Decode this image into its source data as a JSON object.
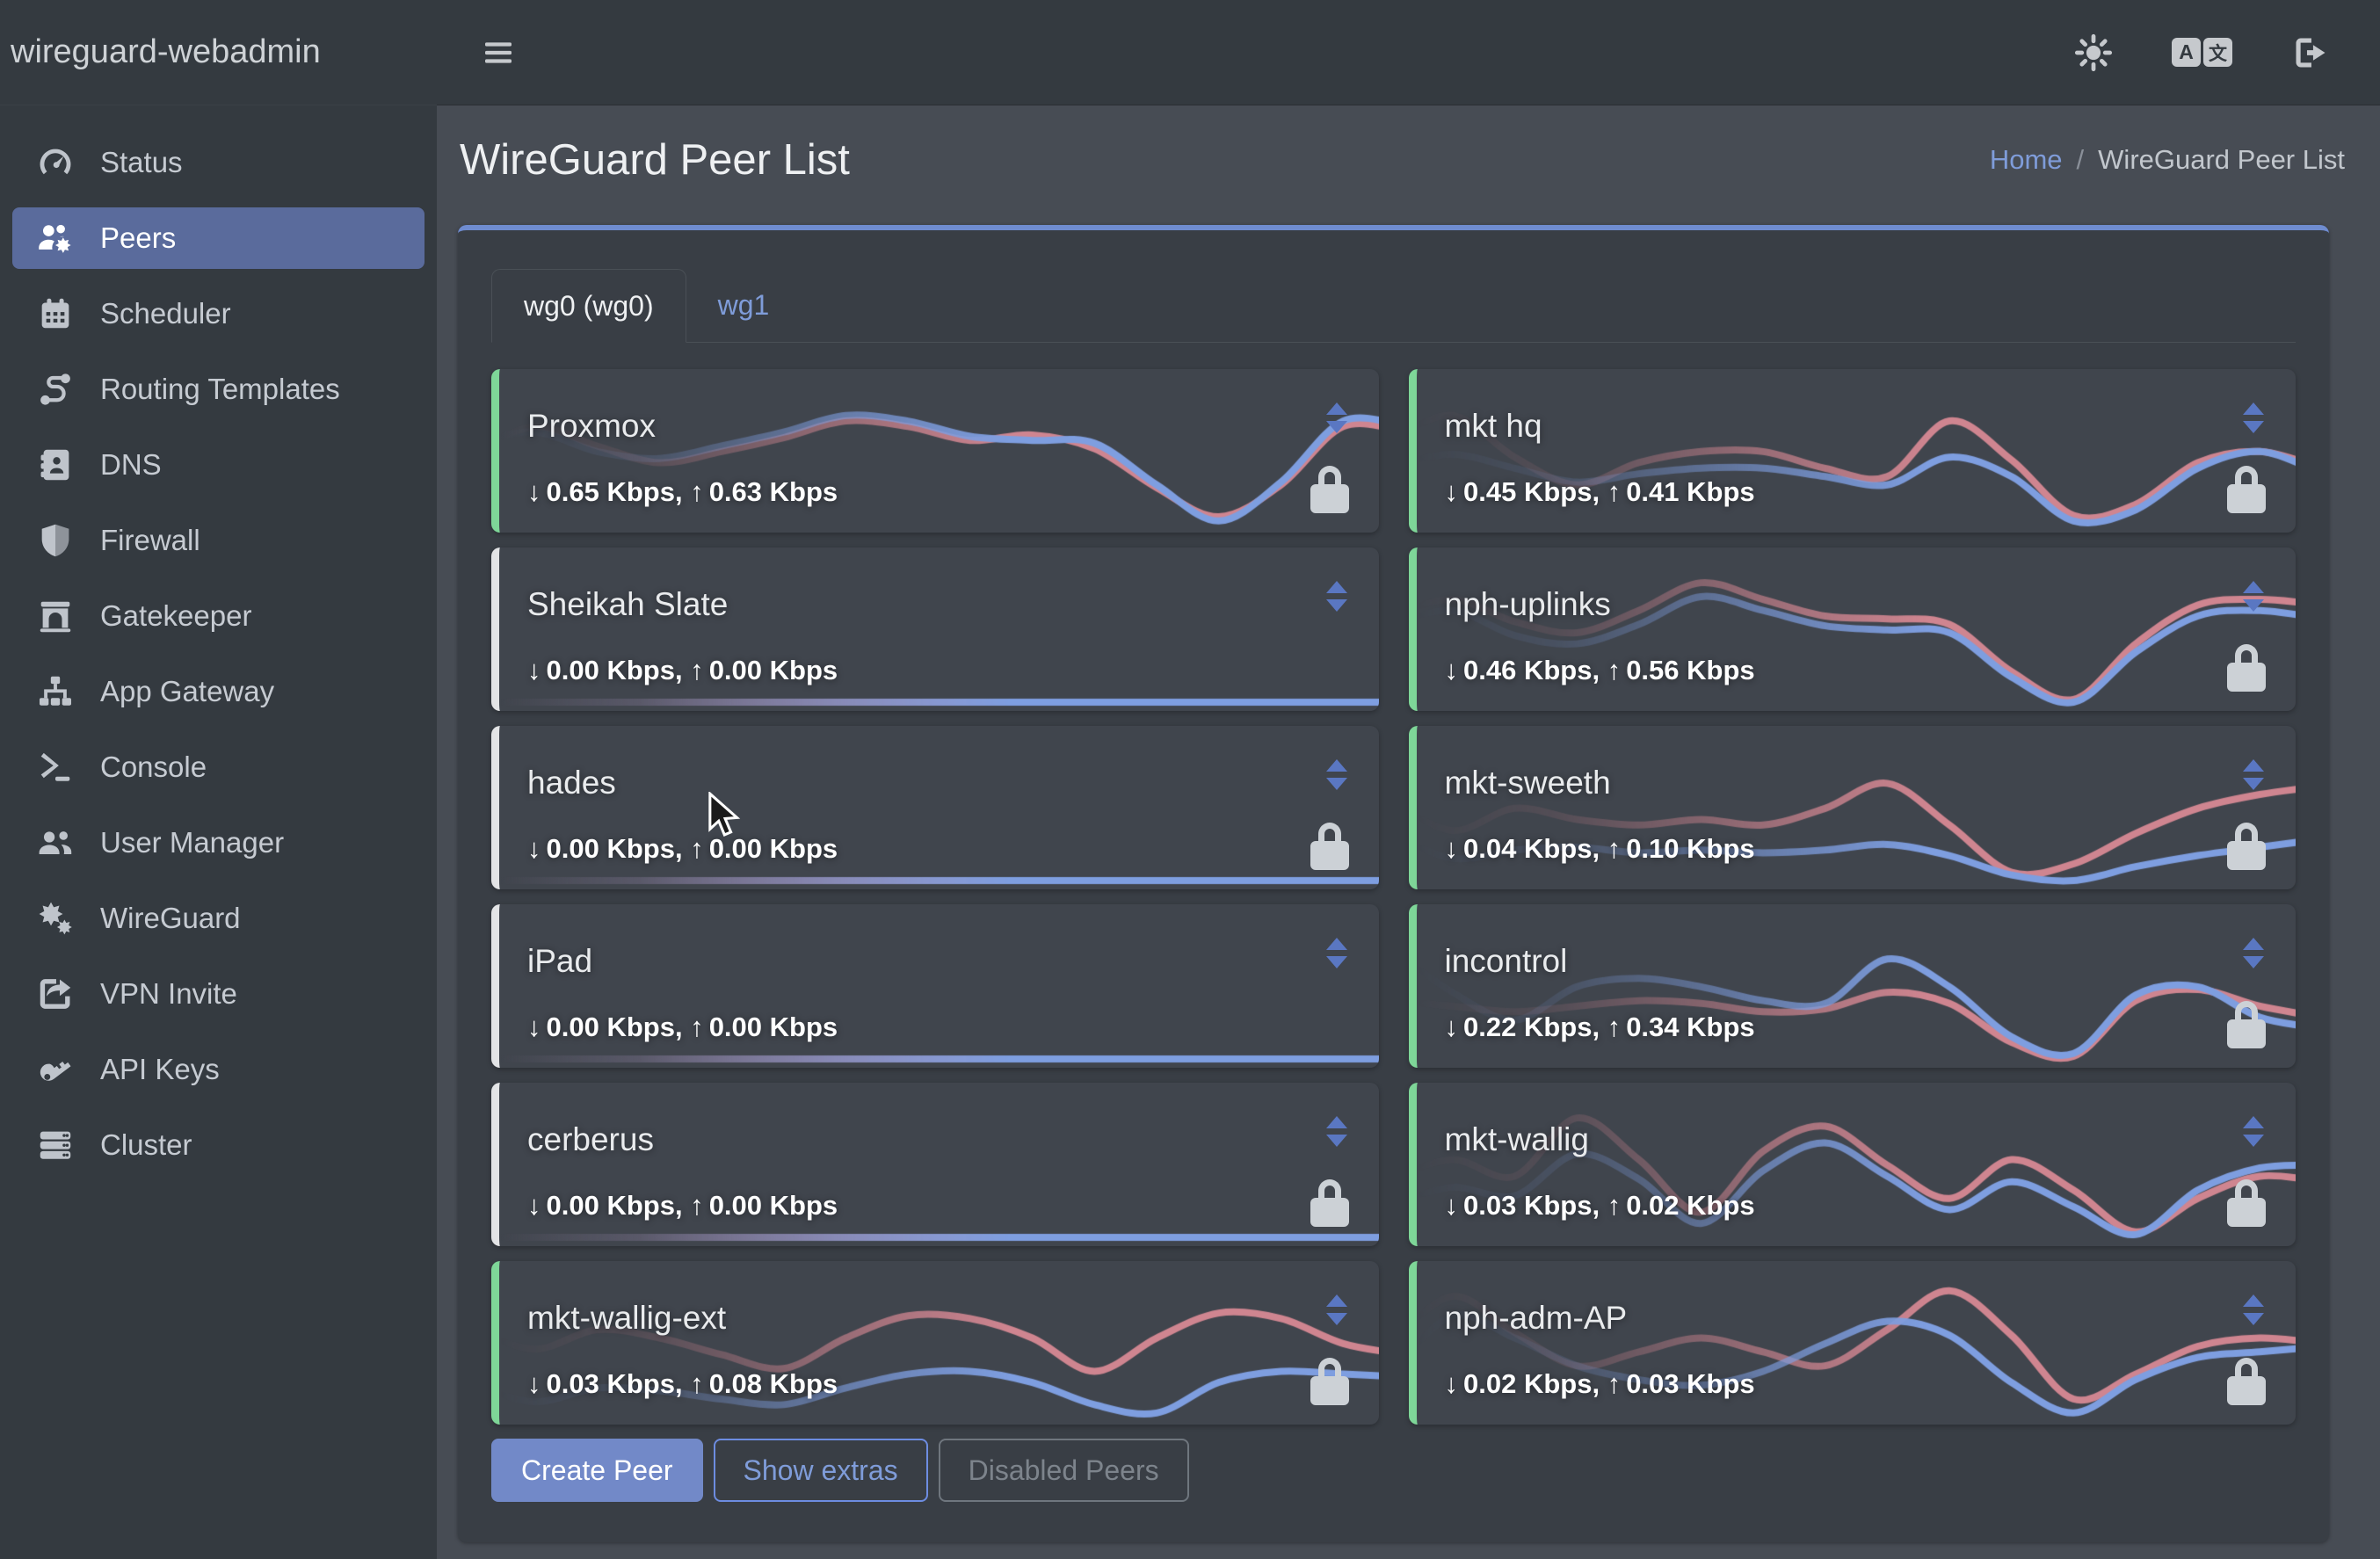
{
  "app": {
    "brand": "wireguard-webadmin"
  },
  "topbar": {
    "icons": [
      {
        "name": "theme-toggle",
        "icon": "sun"
      },
      {
        "name": "language",
        "icon": "translate"
      },
      {
        "name": "logout",
        "icon": "sign-out"
      }
    ]
  },
  "sidebar": {
    "items": [
      {
        "label": "Status",
        "icon": "gauge",
        "active": false
      },
      {
        "label": "Peers",
        "icon": "users-gear",
        "active": true
      },
      {
        "label": "Scheduler",
        "icon": "calendar",
        "active": false
      },
      {
        "label": "Routing Templates",
        "icon": "route",
        "active": false
      },
      {
        "label": "DNS",
        "icon": "address-book",
        "active": false
      },
      {
        "label": "Firewall",
        "icon": "shield",
        "active": false
      },
      {
        "label": "Gatekeeper",
        "icon": "archway",
        "active": false
      },
      {
        "label": "App Gateway",
        "icon": "sitemap",
        "active": false
      },
      {
        "label": "Console",
        "icon": "terminal",
        "active": false
      },
      {
        "label": "User Manager",
        "icon": "users",
        "active": false
      },
      {
        "label": "WireGuard",
        "icon": "gears",
        "active": false
      },
      {
        "label": "VPN Invite",
        "icon": "share-square",
        "active": false
      },
      {
        "label": "API Keys",
        "icon": "key",
        "active": false
      },
      {
        "label": "Cluster",
        "icon": "server",
        "active": false
      }
    ]
  },
  "page": {
    "title": "WireGuard Peer List",
    "breadcrumb": {
      "home": "Home",
      "separator": "/",
      "current": "WireGuard Peer List"
    }
  },
  "tabs": [
    {
      "label": "wg0 (wg0)",
      "active": true
    },
    {
      "label": "wg1",
      "active": false
    }
  ],
  "peers": {
    "unit": "Kbps",
    "columns": [
      [
        {
          "name": "Proxmox",
          "down": "0.65 Kbps",
          "up": "0.63 Kbps",
          "online": true,
          "locked": true,
          "spark": {
            "blue": [
              0.58,
              0.66,
              0.52,
              0.47,
              0.56,
              0.66,
              0.78,
              0.74,
              0.63,
              0.6,
              0.58,
              0.28,
              0.02,
              0.3,
              0.74,
              0.7
            ],
            "red": [
              0.52,
              0.7,
              0.56,
              0.44,
              0.52,
              0.62,
              0.74,
              0.7,
              0.6,
              0.64,
              0.54,
              0.26,
              0.05,
              0.28,
              0.7,
              0.66
            ]
          }
        },
        {
          "name": "Sheikah Slate",
          "down": "0.00 Kbps",
          "up": "0.00 Kbps",
          "online": false,
          "locked": false,
          "spark": {
            "blue": [
              0,
              0,
              0,
              0,
              0,
              0,
              0,
              0,
              0,
              0,
              0,
              0,
              0,
              0,
              0,
              0
            ],
            "red": [
              0,
              0,
              0,
              0,
              0,
              0,
              0,
              0,
              0,
              0,
              0,
              0,
              0,
              0,
              0,
              0
            ]
          }
        },
        {
          "name": "hades",
          "down": "0.00 Kbps",
          "up": "0.00 Kbps",
          "online": false,
          "locked": true,
          "spark": {
            "blue": [
              0,
              0,
              0,
              0,
              0,
              0,
              0,
              0,
              0,
              0,
              0,
              0,
              0,
              0,
              0,
              0
            ],
            "red": [
              0,
              0,
              0,
              0,
              0,
              0,
              0,
              0,
              0,
              0,
              0,
              0,
              0,
              0,
              0,
              0
            ]
          }
        },
        {
          "name": "iPad",
          "down": "0.00 Kbps",
          "up": "0.00 Kbps",
          "online": false,
          "locked": false,
          "spark": {
            "blue": [
              0,
              0,
              0,
              0,
              0,
              0,
              0,
              0,
              0,
              0,
              0,
              0,
              0,
              0,
              0,
              0
            ],
            "red": [
              0,
              0,
              0,
              0,
              0,
              0,
              0,
              0,
              0,
              0,
              0,
              0,
              0,
              0,
              0,
              0
            ]
          }
        },
        {
          "name": "cerberus",
          "down": "0.00 Kbps",
          "up": "0.00 Kbps",
          "online": false,
          "locked": true,
          "spark": {
            "blue": [
              0,
              0,
              0,
              0,
              0,
              0,
              0,
              0,
              0,
              0,
              0,
              0,
              0,
              0,
              0,
              0
            ],
            "red": [
              0,
              0,
              0,
              0,
              0,
              0,
              0,
              0,
              0,
              0,
              0,
              0,
              0,
              0,
              0,
              0
            ]
          }
        },
        {
          "name": "mkt-wallig-ext",
          "down": "0.03 Kbps",
          "up": "0.08 Kbps",
          "online": true,
          "locked": true,
          "spark": {
            "blue": [
              0.22,
              0.1,
              0.2,
              0.18,
              0.12,
              0.08,
              0.2,
              0.3,
              0.32,
              0.24,
              0.08,
              0.02,
              0.24,
              0.32,
              0.3,
              0.28
            ],
            "red": [
              0.62,
              0.48,
              0.62,
              0.56,
              0.44,
              0.34,
              0.56,
              0.72,
              0.7,
              0.56,
              0.32,
              0.56,
              0.74,
              0.7,
              0.52,
              0.44
            ]
          }
        }
      ],
      [
        {
          "name": "mkt hq",
          "down": "0.45 Kbps",
          "up": "0.41 Kbps",
          "online": true,
          "locked": true,
          "spark": {
            "blue": [
              0.42,
              0.5,
              0.4,
              0.3,
              0.36,
              0.4,
              0.4,
              0.34,
              0.28,
              0.48,
              0.34,
              0.02,
              0.1,
              0.4,
              0.52,
              0.36
            ],
            "red": [
              0.6,
              0.78,
              0.48,
              0.28,
              0.44,
              0.52,
              0.52,
              0.4,
              0.34,
              0.74,
              0.46,
              0.06,
              0.14,
              0.44,
              0.52,
              0.4
            ]
          }
        },
        {
          "name": "nph-uplinks",
          "down": "0.46 Kbps",
          "up": "0.56 Kbps",
          "online": true,
          "locked": true,
          "spark": {
            "blue": [
              0.56,
              0.66,
              0.48,
              0.42,
              0.56,
              0.76,
              0.66,
              0.55,
              0.52,
              0.5,
              0.18,
              0.0,
              0.36,
              0.62,
              0.66,
              0.6
            ],
            "red": [
              0.62,
              0.74,
              0.58,
              0.5,
              0.66,
              0.86,
              0.74,
              0.62,
              0.6,
              0.56,
              0.22,
              0.02,
              0.42,
              0.7,
              0.74,
              0.7
            ]
          }
        },
        {
          "name": "mkt-sweeth",
          "down": "0.04 Kbps",
          "up": "0.10 Kbps",
          "online": true,
          "locked": true,
          "spark": {
            "blue": [
              0.34,
              0.16,
              0.22,
              0.24,
              0.2,
              0.22,
              0.2,
              0.22,
              0.26,
              0.18,
              0.04,
              0.0,
              0.1,
              0.18,
              0.24,
              0.3
            ],
            "red": [
              0.58,
              0.36,
              0.52,
              0.44,
              0.4,
              0.44,
              0.4,
              0.52,
              0.7,
              0.4,
              0.06,
              0.12,
              0.34,
              0.52,
              0.62,
              0.68
            ]
          }
        },
        {
          "name": "incontrol",
          "down": "0.22 Kbps",
          "up": "0.34 Kbps",
          "online": true,
          "locked": true,
          "spark": {
            "blue": [
              0.8,
              0.48,
              0.28,
              0.52,
              0.58,
              0.52,
              0.42,
              0.4,
              0.72,
              0.52,
              0.16,
              0.04,
              0.46,
              0.52,
              0.3,
              0.22
            ],
            "red": [
              0.42,
              0.38,
              0.34,
              0.38,
              0.42,
              0.4,
              0.34,
              0.36,
              0.48,
              0.4,
              0.12,
              0.02,
              0.42,
              0.5,
              0.38,
              0.3
            ]
          }
        },
        {
          "name": "mkt-wallig",
          "down": "0.03 Kbps",
          "up": "0.02 Kbps",
          "online": true,
          "locked": true,
          "spark": {
            "blue": [
              0.24,
              0.36,
              0.3,
              0.6,
              0.42,
              0.1,
              0.48,
              0.68,
              0.44,
              0.2,
              0.4,
              0.22,
              0.02,
              0.34,
              0.5,
              0.52
            ],
            "red": [
              0.42,
              0.56,
              0.44,
              0.86,
              0.56,
              0.18,
              0.62,
              0.8,
              0.52,
              0.28,
              0.56,
              0.34,
              0.04,
              0.28,
              0.44,
              0.4
            ]
          }
        },
        {
          "name": "nph-adm-AP",
          "down": "0.02 Kbps",
          "up": "0.03 Kbps",
          "online": true,
          "locked": true,
          "spark": {
            "blue": [
              0.3,
              0.72,
              0.56,
              0.36,
              0.26,
              0.22,
              0.32,
              0.52,
              0.68,
              0.58,
              0.24,
              0.02,
              0.26,
              0.42,
              0.46,
              0.5
            ],
            "red": [
              0.52,
              0.86,
              0.6,
              0.36,
              0.46,
              0.56,
              0.46,
              0.36,
              0.62,
              0.9,
              0.58,
              0.12,
              0.3,
              0.5,
              0.56,
              0.52
            ]
          }
        }
      ]
    ]
  },
  "buttons": [
    {
      "label": "Create Peer",
      "style": "primary"
    },
    {
      "label": "Show extras",
      "style": "outline-primary"
    },
    {
      "label": "Disabled Peers",
      "style": "outline-secondary"
    }
  ],
  "colors": {
    "accent": "#6f8cd0",
    "spark_blue": "#7e9ee0",
    "spark_red": "#cf8590",
    "online": "#7ed698",
    "offline": "#e3e4e6",
    "active_nav": "#5a6b9c"
  }
}
